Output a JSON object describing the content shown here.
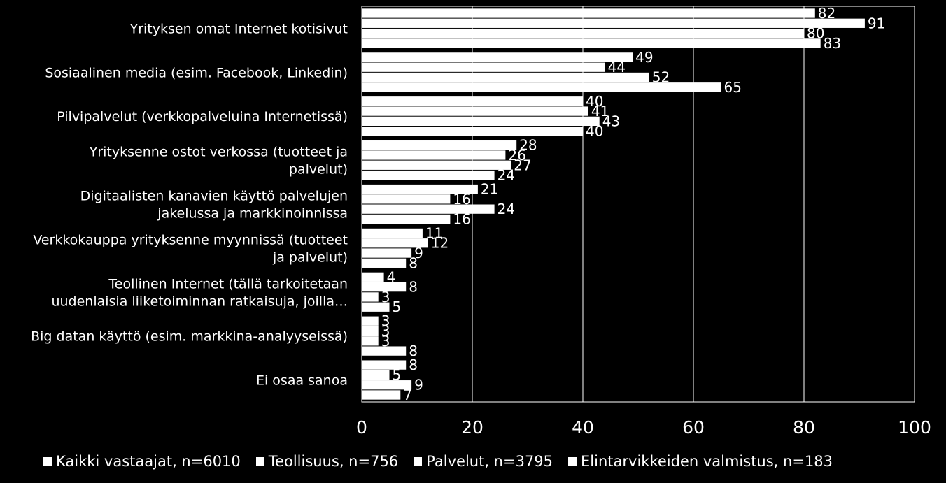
{
  "chart_data": {
    "type": "bar",
    "orientation": "horizontal",
    "categories": [
      [
        "Yrityksen omat Internet kotisivut"
      ],
      [
        "Sosiaalinen media (esim. Facebook, Linkedin)"
      ],
      [
        "Pilvipalvelut  (verkkopalveluina Internetissä)"
      ],
      [
        "Yrityksenne ostot verkossa (tuotteet ja",
        "palvelut)"
      ],
      [
        "Digitaalisten kanavien käyttö palvelujen",
        "jakelussa ja markkinoinnissa"
      ],
      [
        "Verkkokauppa yrityksenne myynnissä (tuotteet",
        "ja palvelut)"
      ],
      [
        "Teollinen Internet (tällä tarkoitetaan",
        "uudenlaisia liiketoiminnan ratkaisuja, joilla…"
      ],
      [
        "Big datan käyttö (esim. markkina-analyyseissä)"
      ],
      [
        "Ei osaa sanoa"
      ]
    ],
    "series": [
      {
        "name": "Kaikki vastaajat, n=6010",
        "values": [
          82,
          49,
          40,
          28,
          21,
          11,
          4,
          3,
          8
        ]
      },
      {
        "name": "Teollisuus, n=756",
        "values": [
          91,
          44,
          41,
          26,
          16,
          12,
          8,
          3,
          5
        ]
      },
      {
        "name": "Palvelut, n=3795",
        "values": [
          80,
          52,
          43,
          27,
          24,
          9,
          3,
          3,
          9
        ]
      },
      {
        "name": "Elintarvikkeiden valmistus, n=183",
        "values": [
          83,
          65,
          40,
          24,
          16,
          8,
          5,
          8,
          7
        ]
      }
    ],
    "xlim": [
      0,
      100
    ],
    "xticks": [
      0,
      20,
      40,
      60,
      80,
      100
    ],
    "grid": true,
    "legend_position": "bottom",
    "bar_color": "#ffffff",
    "background": "#000000"
  }
}
